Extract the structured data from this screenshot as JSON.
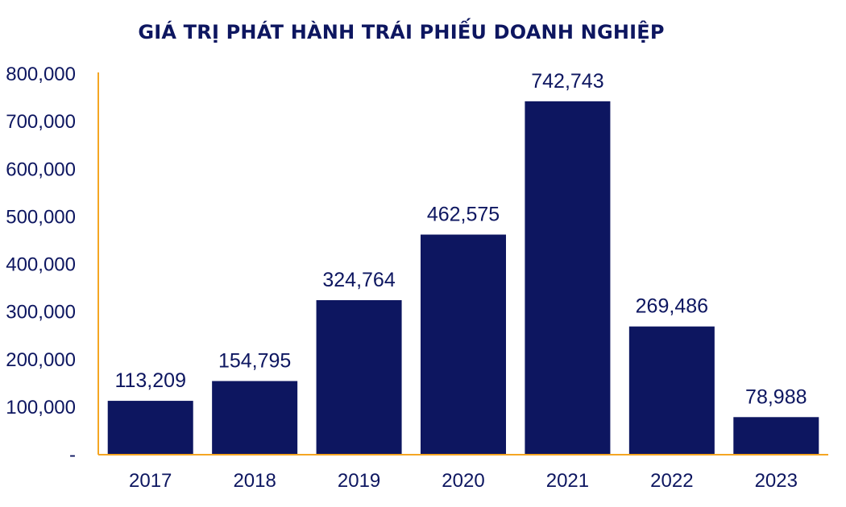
{
  "chart_data": {
    "type": "bar",
    "title": "GIÁ TRỊ PHÁT HÀNH TRÁI PHIẾU DOANH NGHIỆP",
    "xlabel": "",
    "ylabel": "",
    "categories": [
      "2017",
      "2018",
      "2019",
      "2020",
      "2021",
      "2022",
      "2023"
    ],
    "values": [
      113209,
      154795,
      324764,
      462575,
      742743,
      269486,
      78988
    ],
    "value_labels": [
      "113,209",
      "154,795",
      "324,764",
      "462,575",
      "742,743",
      "269,486",
      "78,988"
    ],
    "ylim": [
      0,
      800000
    ],
    "y_ticks": [
      0,
      100000,
      200000,
      300000,
      400000,
      500000,
      600000,
      700000,
      800000
    ],
    "y_tick_labels": [
      "-",
      "100,000",
      "200,000",
      "300,000",
      "400,000",
      "500,000",
      "600,000",
      "700,000",
      "800,000"
    ],
    "grid": false,
    "legend": "none",
    "bar_color": "#0d1660",
    "axis_color": "#f5a623",
    "text_color": "#0d1660"
  }
}
